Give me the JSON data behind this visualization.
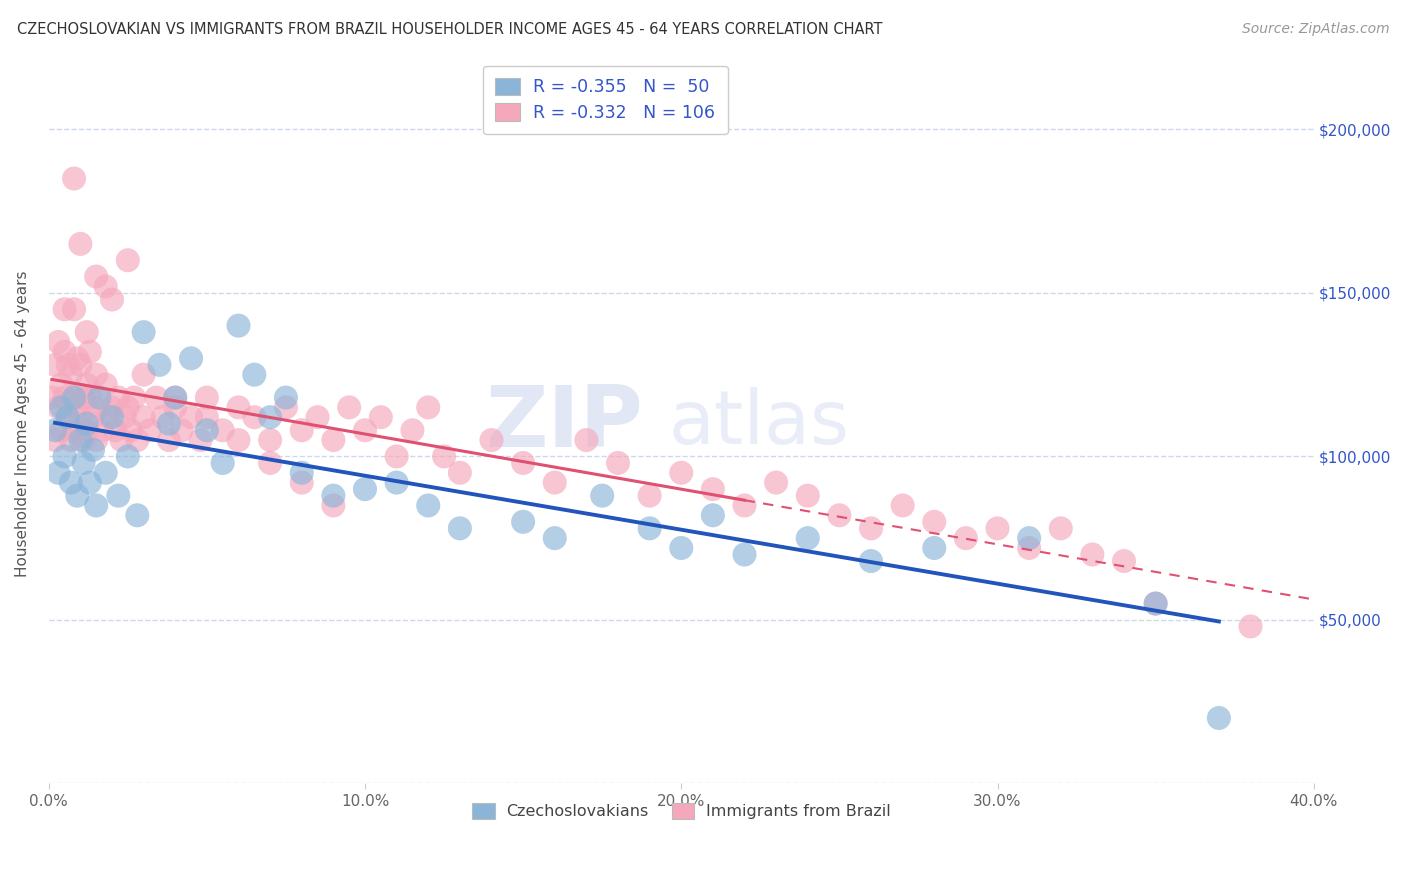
{
  "title": "CZECHOSLOVAKIAN VS IMMIGRANTS FROM BRAZIL HOUSEHOLDER INCOME AGES 45 - 64 YEARS CORRELATION CHART",
  "source": "Source: ZipAtlas.com",
  "ylabel": "Householder Income Ages 45 - 64 years",
  "xlim": [
    0.0,
    0.4
  ],
  "ylim": [
    0,
    220000
  ],
  "yticks": [
    0,
    50000,
    100000,
    150000,
    200000
  ],
  "ytick_labels": [
    "",
    "$50,000",
    "$100,000",
    "$150,000",
    "$200,000"
  ],
  "xticks": [
    0.0,
    0.1,
    0.2,
    0.3,
    0.4
  ],
  "xtick_labels": [
    "0.0%",
    "10.0%",
    "20.0%",
    "30.0%",
    "40.0%"
  ],
  "legend_r1": "-0.355",
  "legend_n1": "50",
  "legend_r2": "-0.332",
  "legend_n2": "106",
  "color_blue": "#8ab4d8",
  "color_pink": "#f5a8bc",
  "color_blue_line": "#2255bb",
  "color_pink_line": "#e05070",
  "color_text_r": "#3355cc",
  "color_text_n": "#3355cc",
  "background_color": "#ffffff",
  "grid_color": "#c8d4e8",
  "watermark_zip": "ZIP",
  "watermark_atlas": "atlas",
  "czecho_x": [
    0.002,
    0.003,
    0.004,
    0.005,
    0.006,
    0.007,
    0.008,
    0.009,
    0.01,
    0.011,
    0.012,
    0.013,
    0.014,
    0.015,
    0.016,
    0.018,
    0.02,
    0.022,
    0.025,
    0.028,
    0.03,
    0.035,
    0.038,
    0.04,
    0.045,
    0.05,
    0.055,
    0.06,
    0.065,
    0.07,
    0.075,
    0.08,
    0.09,
    0.1,
    0.11,
    0.12,
    0.13,
    0.15,
    0.16,
    0.175,
    0.19,
    0.2,
    0.21,
    0.22,
    0.24,
    0.26,
    0.28,
    0.31,
    0.35,
    0.37
  ],
  "czecho_y": [
    108000,
    95000,
    115000,
    100000,
    112000,
    92000,
    118000,
    88000,
    105000,
    98000,
    110000,
    92000,
    102000,
    85000,
    118000,
    95000,
    112000,
    88000,
    100000,
    82000,
    138000,
    128000,
    110000,
    118000,
    130000,
    108000,
    98000,
    140000,
    125000,
    112000,
    118000,
    95000,
    88000,
    90000,
    92000,
    85000,
    78000,
    80000,
    75000,
    88000,
    78000,
    72000,
    82000,
    70000,
    75000,
    68000,
    72000,
    75000,
    55000,
    20000
  ],
  "brazil_x": [
    0.001,
    0.002,
    0.002,
    0.003,
    0.003,
    0.004,
    0.004,
    0.005,
    0.005,
    0.005,
    0.006,
    0.006,
    0.007,
    0.007,
    0.008,
    0.008,
    0.008,
    0.009,
    0.009,
    0.01,
    0.01,
    0.011,
    0.011,
    0.012,
    0.012,
    0.013,
    0.013,
    0.014,
    0.015,
    0.015,
    0.016,
    0.017,
    0.018,
    0.019,
    0.02,
    0.021,
    0.022,
    0.023,
    0.024,
    0.025,
    0.026,
    0.027,
    0.028,
    0.03,
    0.032,
    0.034,
    0.036,
    0.038,
    0.04,
    0.042,
    0.045,
    0.048,
    0.05,
    0.055,
    0.06,
    0.065,
    0.07,
    0.075,
    0.08,
    0.085,
    0.09,
    0.095,
    0.1,
    0.105,
    0.11,
    0.115,
    0.12,
    0.125,
    0.13,
    0.14,
    0.15,
    0.16,
    0.17,
    0.18,
    0.19,
    0.2,
    0.21,
    0.22,
    0.23,
    0.24,
    0.25,
    0.26,
    0.27,
    0.28,
    0.29,
    0.3,
    0.31,
    0.32,
    0.33,
    0.34,
    0.01,
    0.015,
    0.02,
    0.025,
    0.008,
    0.012,
    0.018,
    0.03,
    0.04,
    0.05,
    0.06,
    0.07,
    0.08,
    0.09,
    0.35,
    0.38
  ],
  "brazil_y": [
    118000,
    128000,
    105000,
    115000,
    135000,
    122000,
    108000,
    145000,
    132000,
    118000,
    128000,
    112000,
    125000,
    105000,
    185000,
    118000,
    108000,
    130000,
    115000,
    128000,
    112000,
    118000,
    105000,
    122000,
    108000,
    132000,
    118000,
    112000,
    125000,
    105000,
    115000,
    108000,
    122000,
    112000,
    115000,
    108000,
    118000,
    105000,
    112000,
    115000,
    108000,
    118000,
    105000,
    112000,
    108000,
    118000,
    112000,
    105000,
    115000,
    108000,
    112000,
    105000,
    118000,
    108000,
    115000,
    112000,
    105000,
    115000,
    108000,
    112000,
    105000,
    115000,
    108000,
    112000,
    100000,
    108000,
    115000,
    100000,
    95000,
    105000,
    98000,
    92000,
    105000,
    98000,
    88000,
    95000,
    90000,
    85000,
    92000,
    88000,
    82000,
    78000,
    85000,
    80000,
    75000,
    78000,
    72000,
    78000,
    70000,
    68000,
    165000,
    155000,
    148000,
    160000,
    145000,
    138000,
    152000,
    125000,
    118000,
    112000,
    105000,
    98000,
    92000,
    85000,
    55000,
    48000
  ]
}
